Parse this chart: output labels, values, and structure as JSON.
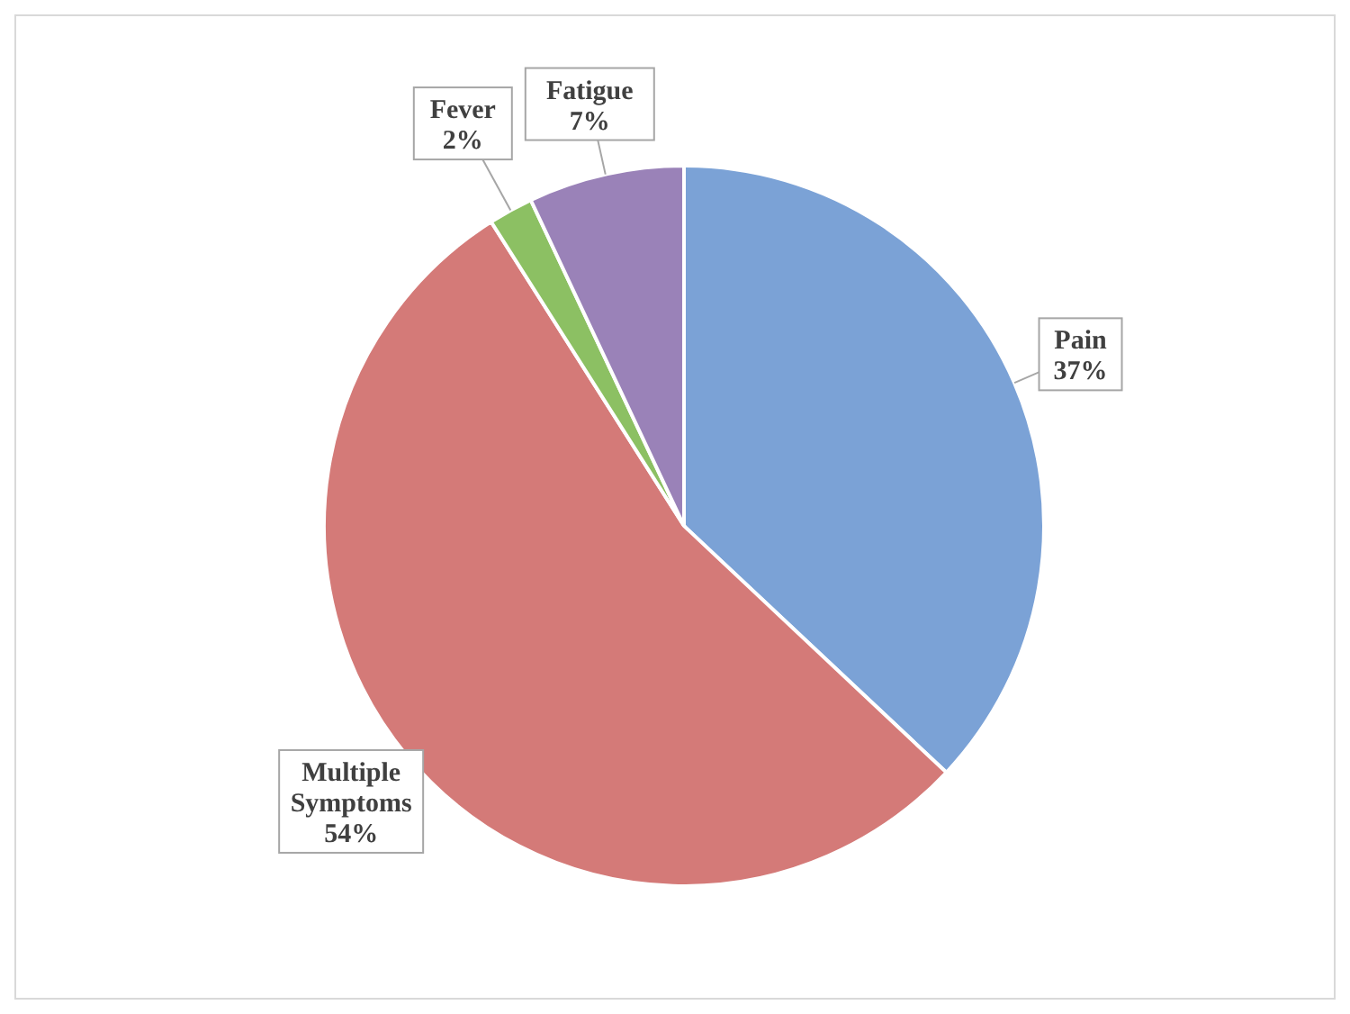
{
  "chart_data": {
    "type": "pie",
    "categories": [
      "Pain",
      "Multiple Symptoms",
      "Fever",
      "Fatigue"
    ],
    "values": [
      37,
      54,
      2,
      7
    ],
    "value_labels": [
      "37%",
      "54%",
      "2%",
      "7%"
    ],
    "colors": [
      "#7ba2d6",
      "#d47a78",
      "#8cc063",
      "#9a82b8"
    ]
  }
}
